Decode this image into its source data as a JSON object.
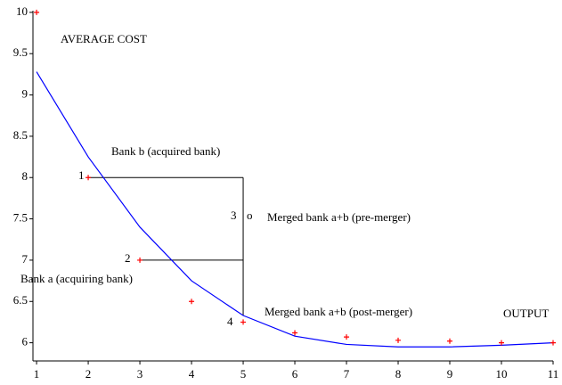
{
  "chart_data": {
    "type": "line",
    "x": [
      1,
      2,
      3,
      4,
      5,
      6,
      7,
      8,
      9,
      10,
      11
    ],
    "series": [
      {
        "color": "#0000ff",
        "style": "line",
        "values": [
          9.28,
          8.25,
          7.4,
          6.75,
          6.33,
          6.08,
          5.98,
          5.95,
          5.95,
          5.97,
          6.0
        ]
      },
      {
        "color": "#ff0000",
        "style": "plus",
        "values": [
          10,
          8,
          7,
          6.5,
          6.25,
          6.12,
          6.07,
          6.03,
          6.02,
          6.0,
          6.0
        ]
      }
    ],
    "xlim": [
      0.93,
      11
    ],
    "ylim": [
      5.78,
      10.02
    ],
    "xticks": [
      1,
      2,
      3,
      4,
      5,
      6,
      7,
      8,
      9,
      10,
      11
    ],
    "yticks": [
      6,
      6.5,
      7,
      7.5,
      8,
      8.5,
      9,
      9.5,
      10
    ],
    "annotations": [
      "AVERAGE COST",
      "Bank b (acquired bank)",
      "1",
      "2",
      "3",
      "o",
      "Merged bank a+b (pre-merger)",
      "Bank a (acquiring bank)",
      "4",
      "Merged bank a+b (post-merger)",
      "OUTPUT"
    ]
  }
}
